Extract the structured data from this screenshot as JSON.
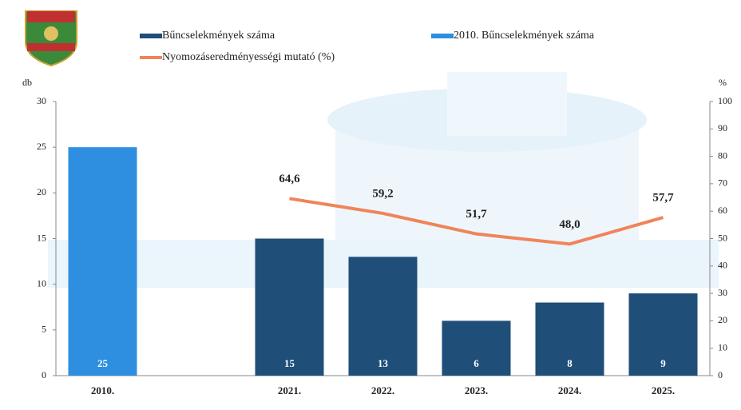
{
  "chart_data": {
    "type": "bar",
    "y_label": "db",
    "y2_label": "%",
    "categories": [
      "2010.",
      null,
      "2021.",
      "2022.",
      "2023.",
      "2024.",
      "2025."
    ],
    "series": [
      {
        "name": "Bűncselekmények száma",
        "color": "#1f4e79",
        "values": [
          null,
          null,
          15,
          13,
          6,
          8,
          9
        ]
      },
      {
        "name": "2010. Bűncselekmények száma",
        "color": "#2e8fe0",
        "values": [
          25,
          null,
          null,
          null,
          null,
          null,
          null
        ]
      },
      {
        "name": "Nyomozáseredményességi mutató (%)",
        "type": "line",
        "axis": "y2",
        "color": "#f0845a",
        "values": [
          null,
          null,
          64.6,
          59.2,
          51.7,
          48.0,
          57.7
        ],
        "value_labels": [
          null,
          null,
          "64,6",
          "59,2",
          "51,7",
          "48,0",
          "57,7"
        ]
      }
    ],
    "ylim": [
      0,
      30
    ],
    "yticks": [
      0,
      5,
      10,
      15,
      20,
      25,
      30
    ],
    "y2lim": [
      0,
      100
    ],
    "y2ticks": [
      0,
      10,
      20,
      30,
      40,
      50,
      60,
      70,
      80,
      90,
      100
    ]
  }
}
